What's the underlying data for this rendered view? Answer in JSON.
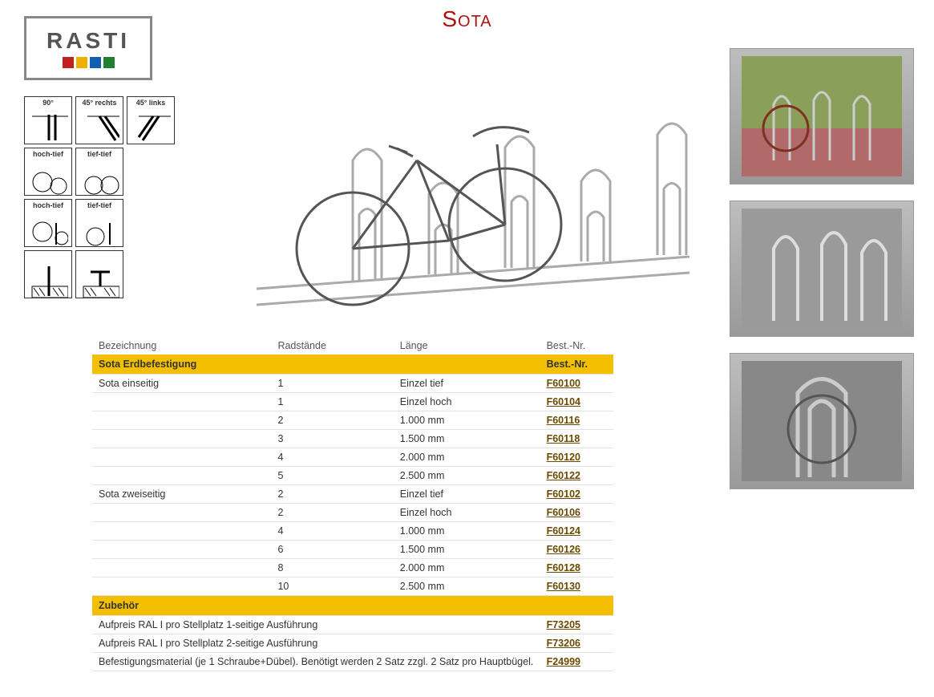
{
  "brand": {
    "name": "RASTI",
    "squares": [
      "#c02020",
      "#f0b000",
      "#1060b0",
      "#208030"
    ]
  },
  "title": {
    "text": "Sota",
    "color": "#b01010"
  },
  "iconLabels": [
    "90°",
    "45° rechts",
    "45° links",
    "hoch-tief",
    "tief-tief",
    "",
    "hoch-tief",
    "tief-tief",
    "",
    "",
    "",
    ""
  ],
  "table": {
    "headers": {
      "bezeichnung": "Bezeichnung",
      "radstaende": "Radstände",
      "laenge": "Länge",
      "bestnr": "Best.-Nr."
    },
    "section1": {
      "title": "Sota Erdbefestigung",
      "bg": "#f3bf00"
    },
    "group1": {
      "label": "Sota einseitig",
      "rows": [
        {
          "rad": "1",
          "len": "Einzel tief",
          "nr": "F60100"
        },
        {
          "rad": "1",
          "len": "Einzel hoch",
          "nr": "F60104"
        },
        {
          "rad": "2",
          "len": "1.000 mm",
          "nr": "F60116"
        },
        {
          "rad": "3",
          "len": "1.500 mm",
          "nr": "F60118"
        },
        {
          "rad": "4",
          "len": "2.000 mm",
          "nr": "F60120"
        },
        {
          "rad": "5",
          "len": "2.500 mm",
          "nr": "F60122"
        }
      ]
    },
    "group2": {
      "label": "Sota zweiseitig",
      "rows": [
        {
          "rad": "2",
          "len": "Einzel tief",
          "nr": "F60102"
        },
        {
          "rad": "2",
          "len": "Einzel hoch",
          "nr": "F60106"
        },
        {
          "rad": "4",
          "len": "1.000 mm",
          "nr": "F60124"
        },
        {
          "rad": "6",
          "len": "1.500 mm",
          "nr": "F60126"
        },
        {
          "rad": "8",
          "len": "2.000 mm",
          "nr": "F60128"
        },
        {
          "rad": "10",
          "len": "2.500 mm",
          "nr": "F60130"
        }
      ]
    },
    "section2": {
      "title": "Zubehör",
      "bg": "#f3bf00"
    },
    "accessories": [
      {
        "text": "Aufpreis RAL I pro Stellplatz 1-seitige Ausführung",
        "nr": "F73205"
      },
      {
        "text": "Aufpreis RAL I pro Stellplatz 2-seitige Ausführung",
        "nr": "F73206"
      },
      {
        "text": "Befestigungsmaterial (je 1 Schraube+Dübel). Benötigt werden 2 Satz zzgl. 2 Satz pro Hauptbügel.",
        "nr": "F24999"
      }
    ],
    "ordernr_color": "#6b4a00"
  }
}
